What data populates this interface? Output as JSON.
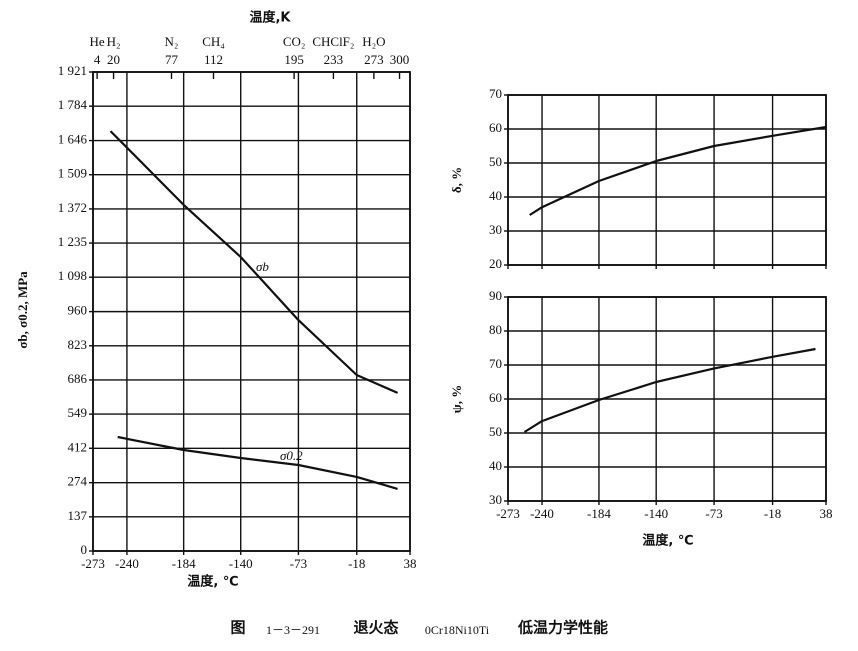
{
  "chart_data": [
    {
      "type": "line",
      "title": "温度,K",
      "xlabel": "温度, ℃",
      "ylabel": "σb, σ0.2, MPa",
      "xlim": [
        -273,
        38
      ],
      "xticks": [
        -273,
        -240,
        -184,
        -140,
        -73,
        -18,
        38
      ],
      "ylim": [
        0,
        1921
      ],
      "yticks": [
        0,
        137,
        274,
        412,
        549,
        686,
        823,
        960,
        {
          "value": 1098,
          "label": "1 098"
        },
        {
          "value": 1235,
          "label": "1 235"
        },
        {
          "value": 1372,
          "label": "1 372"
        },
        {
          "value": 1509,
          "label": "1 509"
        },
        {
          "value": 1646,
          "label": "1 646"
        },
        {
          "value": 1784,
          "label": "1 784"
        },
        {
          "value": 1921,
          "label": "1 921"
        }
      ],
      "x2lim": [
        0,
        311
      ],
      "x2ticks": [
        4,
        20,
        77,
        112,
        195,
        233,
        273,
        300
      ],
      "x2tick_substances": [
        "He",
        "H₂",
        "N₂",
        "CH₄",
        "CO₂",
        "CHClF₂",
        "H₂O",
        null
      ],
      "grid": true,
      "series": [
        {
          "name": "σb",
          "color": "#111111",
          "x": [
            -256,
            -184,
            -140,
            -73,
            -18,
            25
          ],
          "values": [
            1684,
            1388,
            1179,
            926,
            706,
            634
          ]
        },
        {
          "name": "σ0.2",
          "color": "#111111",
          "x": [
            -249,
            -184,
            -140,
            -73,
            -18,
            25
          ],
          "values": [
            457,
            405,
            373,
            345,
            297,
            249
          ]
        }
      ]
    },
    {
      "type": "line",
      "ylabel": "δ, %",
      "xlim": [
        -273,
        38
      ],
      "xticks": [
        -273,
        -240,
        -184,
        -140,
        -73,
        -18,
        38
      ],
      "show_xtick_labels": false,
      "ylim": [
        20,
        70
      ],
      "yticks": [
        20,
        30,
        40,
        50,
        60,
        70
      ],
      "grid": true,
      "series": [
        {
          "name": "δ",
          "color": "#111111",
          "x": [
            -252,
            -240,
            -184,
            -140,
            -73,
            -18,
            38
          ],
          "values": [
            34.7,
            37,
            44.7,
            50.6,
            55,
            58,
            60.6
          ]
        }
      ]
    },
    {
      "type": "line",
      "xlabel": "温度, ℃",
      "ylabel": "ψ, %",
      "xlim": [
        -273,
        38
      ],
      "xticks": [
        -273,
        -240,
        -184,
        -140,
        -73,
        -18,
        38
      ],
      "show_xtick_labels": true,
      "ylim": [
        30,
        90
      ],
      "yticks": [
        30,
        40,
        50,
        60,
        70,
        80,
        90
      ],
      "grid": true,
      "series": [
        {
          "name": "ψ",
          "color": "#111111",
          "x": [
            -257,
            -240,
            -184,
            -140,
            -73,
            -18,
            27
          ],
          "values": [
            50.3,
            53.5,
            59.7,
            65,
            69,
            72.4,
            74.7
          ]
        }
      ]
    }
  ],
  "caption": {
    "figure": "图",
    "number": "1－3－291",
    "state": "退火态",
    "material": "0Cr18Ni10Ti",
    "property": "低温力学性能"
  }
}
